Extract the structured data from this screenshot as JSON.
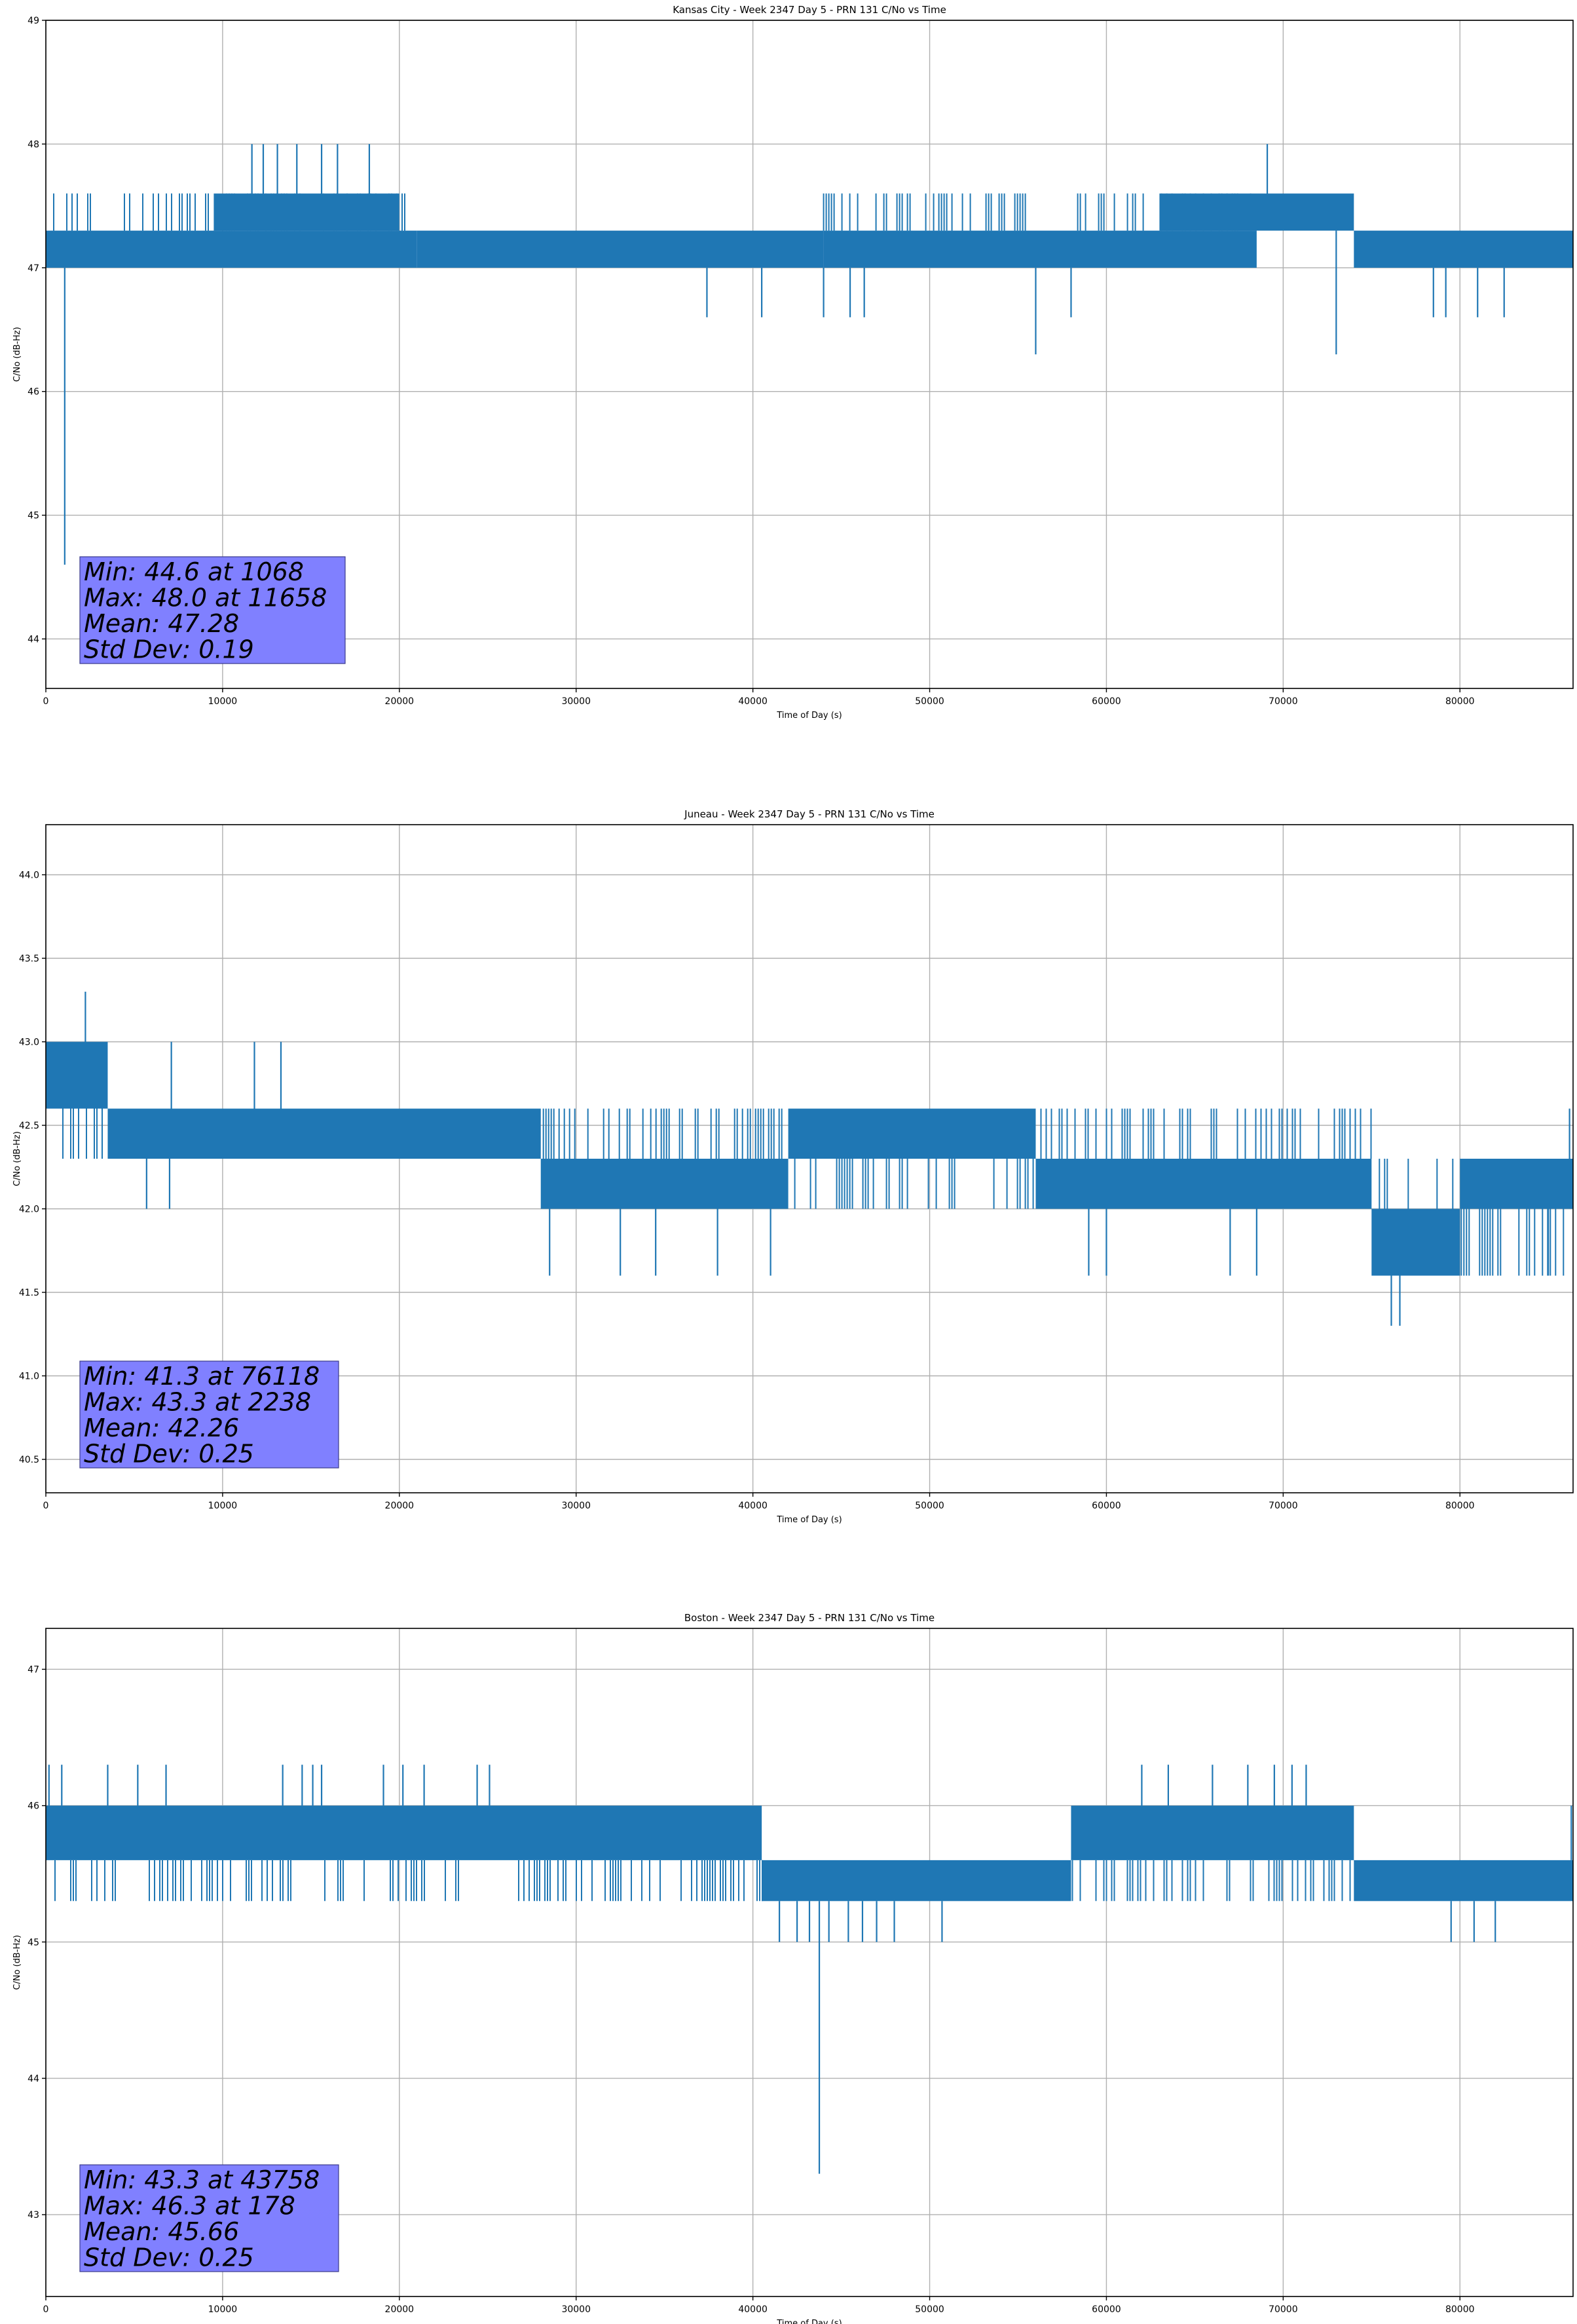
{
  "series_color": "#1f77b4",
  "stats_box_color": "#8080ff",
  "chart_data": [
    {
      "type": "line",
      "title": "Kansas City - Week 2347 Day 5 - PRN 131 C/No vs Time",
      "xlabel": "Time of Day (s)",
      "ylabel": "C/No (dB-Hz)",
      "xlim": [
        0,
        86400
      ],
      "ylim": [
        43.6,
        49.0
      ],
      "xticks": [
        0,
        10000,
        20000,
        30000,
        40000,
        50000,
        60000,
        70000,
        80000
      ],
      "yticks": [
        44,
        45,
        46,
        47,
        48,
        49
      ],
      "ytick_labels": [
        "44",
        "45",
        "46",
        "47",
        "48",
        "49"
      ],
      "band": [
        {
          "x": [
            0,
            21000
          ],
          "low": 47.0,
          "high": 47.6,
          "dense_low": 47.0,
          "dense_high": 47.3
        },
        {
          "x": [
            9500,
            20000
          ],
          "low": 47.3,
          "high": 47.6,
          "dense_low": 47.3,
          "dense_high": 47.6
        },
        {
          "x": [
            21000,
            44000
          ],
          "low": 47.0,
          "high": 47.3,
          "dense_low": 47.0,
          "dense_high": 47.3
        },
        {
          "x": [
            44000,
            68500
          ],
          "low": 47.0,
          "high": 47.6,
          "dense_low": 47.0,
          "dense_high": 47.3
        },
        {
          "x": [
            63000,
            74000
          ],
          "low": 47.3,
          "high": 47.6,
          "dense_low": 47.3,
          "dense_high": 47.6
        },
        {
          "x": [
            74000,
            86400
          ],
          "low": 47.0,
          "high": 47.3,
          "dense_low": 47.0,
          "dense_high": 47.3
        }
      ],
      "spikes": [
        {
          "x": 1068,
          "y": 44.6
        },
        {
          "x": 11658,
          "y": 48.0
        },
        {
          "x": 12300,
          "y": 48.0
        },
        {
          "x": 13100,
          "y": 48.0
        },
        {
          "x": 14200,
          "y": 48.0
        },
        {
          "x": 15600,
          "y": 48.0
        },
        {
          "x": 16500,
          "y": 48.0
        },
        {
          "x": 18300,
          "y": 48.0
        },
        {
          "x": 69100,
          "y": 48.0
        },
        {
          "x": 37400,
          "y": 46.6
        },
        {
          "x": 40500,
          "y": 46.6
        },
        {
          "x": 44000,
          "y": 46.6
        },
        {
          "x": 45500,
          "y": 46.6
        },
        {
          "x": 46300,
          "y": 46.6
        },
        {
          "x": 56000,
          "y": 46.3
        },
        {
          "x": 58000,
          "y": 46.6
        },
        {
          "x": 73000,
          "y": 46.3
        },
        {
          "x": 78500,
          "y": 46.6
        },
        {
          "x": 79200,
          "y": 46.6
        },
        {
          "x": 81000,
          "y": 46.6
        },
        {
          "x": 82500,
          "y": 46.6
        }
      ],
      "stats": [
        "Min: 44.6 at 1068",
        "Max: 48.0 at 11658",
        "Mean: 47.28",
        "Std Dev: 0.19"
      ]
    },
    {
      "type": "line",
      "title": "Juneau - Week 2347 Day 5 - PRN 131 C/No vs Time",
      "xlabel": "Time of Day (s)",
      "ylabel": "C/No (dB-Hz)",
      "xlim": [
        0,
        86400
      ],
      "ylim": [
        40.3,
        44.3
      ],
      "xticks": [
        0,
        10000,
        20000,
        30000,
        40000,
        50000,
        60000,
        70000,
        80000
      ],
      "yticks": [
        40.5,
        41.0,
        41.5,
        42.0,
        42.5,
        43.0,
        43.5,
        44.0
      ],
      "ytick_labels": [
        "40.5",
        "41.0",
        "41.5",
        "42.0",
        "42.5",
        "43.0",
        "43.5",
        "44.0"
      ],
      "band": [
        {
          "x": [
            0,
            3500
          ],
          "low": 42.3,
          "high": 43.0,
          "dense_low": 42.6,
          "dense_high": 43.0
        },
        {
          "x": [
            3500,
            28000
          ],
          "low": 42.3,
          "high": 42.6,
          "dense_low": 42.3,
          "dense_high": 42.6
        },
        {
          "x": [
            28000,
            42000
          ],
          "low": 42.0,
          "high": 42.6,
          "dense_low": 42.0,
          "dense_high": 42.3
        },
        {
          "x": [
            42000,
            56000
          ],
          "low": 42.0,
          "high": 42.6,
          "dense_low": 42.3,
          "dense_high": 42.6
        },
        {
          "x": [
            56000,
            75000
          ],
          "low": 42.0,
          "high": 42.6,
          "dense_low": 42.0,
          "dense_high": 42.3
        },
        {
          "x": [
            75000,
            80000
          ],
          "low": 41.6,
          "high": 42.3,
          "dense_low": 41.6,
          "dense_high": 42.0
        },
        {
          "x": [
            80000,
            86400
          ],
          "low": 41.6,
          "high": 42.3,
          "dense_low": 42.0,
          "dense_high": 42.3
        }
      ],
      "spikes": [
        {
          "x": 2238,
          "y": 43.3
        },
        {
          "x": 7100,
          "y": 43.0
        },
        {
          "x": 11800,
          "y": 43.0
        },
        {
          "x": 13300,
          "y": 43.0
        },
        {
          "x": 5700,
          "y": 42.0
        },
        {
          "x": 7000,
          "y": 42.0
        },
        {
          "x": 28500,
          "y": 41.6
        },
        {
          "x": 32500,
          "y": 41.6
        },
        {
          "x": 34500,
          "y": 41.6
        },
        {
          "x": 38000,
          "y": 41.6
        },
        {
          "x": 41000,
          "y": 41.6
        },
        {
          "x": 59000,
          "y": 41.6
        },
        {
          "x": 60000,
          "y": 41.6
        },
        {
          "x": 67000,
          "y": 41.6
        },
        {
          "x": 68500,
          "y": 41.6
        },
        {
          "x": 76118,
          "y": 41.3
        },
        {
          "x": 76600,
          "y": 41.3
        },
        {
          "x": 86200,
          "y": 42.6
        },
        {
          "x": 85000,
          "y": 41.6
        }
      ],
      "stats": [
        "Min: 41.3 at 76118",
        "Max: 43.3 at 2238",
        "Mean: 42.26",
        "Std Dev: 0.25"
      ]
    },
    {
      "type": "line",
      "title": "Boston - Week 2347 Day 5 - PRN 131 C/No vs Time",
      "xlabel": "Time of Day (s)",
      "ylabel": "C/No (dB-Hz)",
      "xlim": [
        0,
        86400
      ],
      "ylim": [
        42.4,
        47.3
      ],
      "xticks": [
        0,
        10000,
        20000,
        30000,
        40000,
        50000,
        60000,
        70000,
        80000
      ],
      "yticks": [
        43,
        44,
        45,
        46,
        47
      ],
      "ytick_labels": [
        "43",
        "44",
        "45",
        "46",
        "47"
      ],
      "band": [
        {
          "x": [
            0,
            40500
          ],
          "low": 45.3,
          "high": 46.0,
          "dense_low": 45.6,
          "dense_high": 46.0
        },
        {
          "x": [
            40500,
            58000
          ],
          "low": 45.3,
          "high": 45.6,
          "dense_low": 45.3,
          "dense_high": 45.6
        },
        {
          "x": [
            58000,
            74000
          ],
          "low": 45.3,
          "high": 46.0,
          "dense_low": 45.6,
          "dense_high": 46.0
        },
        {
          "x": [
            74000,
            86400
          ],
          "low": 45.3,
          "high": 45.6,
          "dense_low": 45.3,
          "dense_high": 45.6
        }
      ],
      "spikes": [
        {
          "x": 178,
          "y": 46.3
        },
        {
          "x": 900,
          "y": 46.3
        },
        {
          "x": 3500,
          "y": 46.3
        },
        {
          "x": 5200,
          "y": 46.3
        },
        {
          "x": 6800,
          "y": 46.3
        },
        {
          "x": 13400,
          "y": 46.3
        },
        {
          "x": 14500,
          "y": 46.3
        },
        {
          "x": 15100,
          "y": 46.3
        },
        {
          "x": 15600,
          "y": 46.3
        },
        {
          "x": 19100,
          "y": 46.3
        },
        {
          "x": 20200,
          "y": 46.3
        },
        {
          "x": 21400,
          "y": 46.3
        },
        {
          "x": 24400,
          "y": 46.3
        },
        {
          "x": 25100,
          "y": 46.3
        },
        {
          "x": 62000,
          "y": 46.3
        },
        {
          "x": 63500,
          "y": 46.3
        },
        {
          "x": 66000,
          "y": 46.3
        },
        {
          "x": 68000,
          "y": 46.3
        },
        {
          "x": 69500,
          "y": 46.3
        },
        {
          "x": 70500,
          "y": 46.3
        },
        {
          "x": 71300,
          "y": 46.3
        },
        {
          "x": 86300,
          "y": 46.0
        },
        {
          "x": 41500,
          "y": 45.0
        },
        {
          "x": 42500,
          "y": 45.0
        },
        {
          "x": 43200,
          "y": 45.0
        },
        {
          "x": 44300,
          "y": 45.0
        },
        {
          "x": 45400,
          "y": 45.0
        },
        {
          "x": 46200,
          "y": 45.0
        },
        {
          "x": 47000,
          "y": 45.0
        },
        {
          "x": 48000,
          "y": 45.0
        },
        {
          "x": 50700,
          "y": 45.0
        },
        {
          "x": 43758,
          "y": 43.3
        },
        {
          "x": 79500,
          "y": 45.0
        },
        {
          "x": 80800,
          "y": 45.0
        },
        {
          "x": 82000,
          "y": 45.0
        }
      ],
      "stats": [
        "Min: 43.3 at 43758",
        "Max: 46.3 at 178",
        "Mean: 45.66",
        "Std Dev: 0.25"
      ]
    }
  ]
}
